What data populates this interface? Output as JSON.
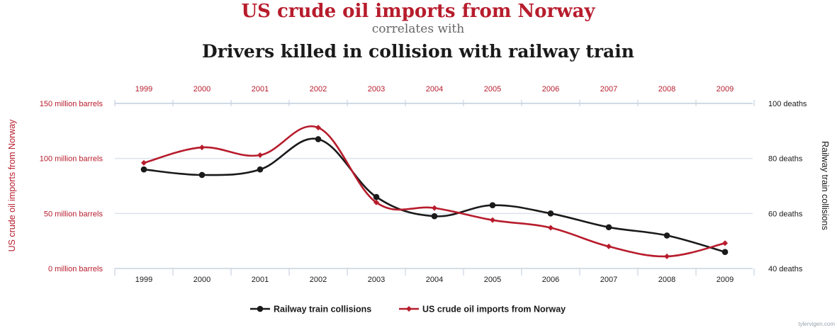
{
  "colors": {
    "red": "#b71c2c",
    "black": "#1a1a1a",
    "gray": "#666666",
    "grid": "#dbe3ec",
    "axis": "#c7d3e1"
  },
  "title": {
    "line1": "US crude oil imports from Norway",
    "line2": "correlates with",
    "line3": "Drivers killed in collision with railway train"
  },
  "chart_data": {
    "type": "line",
    "categories": [
      "1999",
      "2000",
      "2001",
      "2002",
      "2003",
      "2004",
      "2005",
      "2006",
      "2007",
      "2008",
      "2009"
    ],
    "top_tick_labels": [
      "1999",
      "2000",
      "2001",
      "2002",
      "2003",
      "2004",
      "2005",
      "2006",
      "2007",
      "2008",
      "2009"
    ],
    "bottom_tick_labels": [
      "1999",
      "2000",
      "2001",
      "2002",
      "2003",
      "2004",
      "2005",
      "2006",
      "2007",
      "2008",
      "2009"
    ],
    "left_axis": {
      "label": "US crude oil imports from Norway",
      "ylim": [
        0,
        150
      ],
      "ticks": [
        {
          "value": 150,
          "label": "150 million barrels"
        },
        {
          "value": 100,
          "label": "100 million barrels"
        },
        {
          "value": 50,
          "label": "50 million barrels"
        },
        {
          "value": 0,
          "label": "0 million barrels"
        }
      ]
    },
    "right_axis": {
      "label": "Railway train collisions",
      "ylim": [
        40,
        100
      ],
      "ticks": [
        {
          "value": 100,
          "label": "100 deaths"
        },
        {
          "value": 80,
          "label": "80 deaths"
        },
        {
          "value": 60,
          "label": "60 deaths"
        },
        {
          "value": 40,
          "label": "40 deaths"
        }
      ]
    },
    "series": [
      {
        "name": "Railway train collisions",
        "axis": "right",
        "color": "#1a1a1a",
        "values": [
          76,
          74,
          76,
          87,
          66,
          59,
          63,
          60,
          55,
          52,
          46
        ]
      },
      {
        "name": "US crude oil imports from Norway",
        "axis": "left",
        "color": "#b71c2c",
        "values": [
          96,
          110,
          103,
          128,
          60,
          55,
          44,
          37,
          20,
          11,
          23
        ]
      }
    ],
    "legend": [
      "Railway train collisions",
      "US crude oil imports from Norway"
    ],
    "legend_position": "bottom-center",
    "grid": true
  },
  "source": "tylervigen.com"
}
